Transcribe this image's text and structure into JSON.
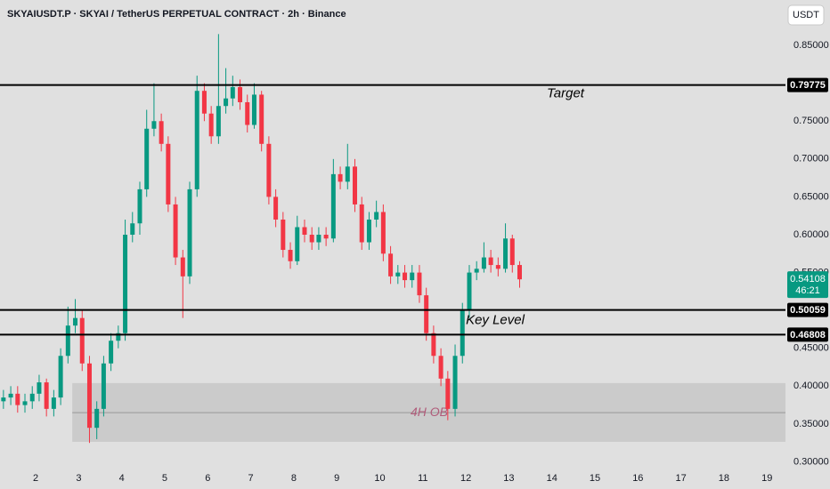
{
  "chart_data": {
    "type": "candlestick",
    "title": "SKYAIUSDT.P · SKYAI / TetherUS PERPETUAL CONTRACT · 2h · Binance",
    "currency": "USDT",
    "up_color": "#089981",
    "down_color": "#f23645",
    "x": [
      1.25,
      1.42,
      1.58,
      1.75,
      1.92,
      2.08,
      2.25,
      2.42,
      2.58,
      2.75,
      2.92,
      3.08,
      3.25,
      3.42,
      3.58,
      3.75,
      3.92,
      4.08,
      4.25,
      4.42,
      4.58,
      4.75,
      4.92,
      5.08,
      5.25,
      5.42,
      5.58,
      5.75,
      5.92,
      6.08,
      6.25,
      6.42,
      6.58,
      6.75,
      6.92,
      7.08,
      7.25,
      7.42,
      7.58,
      7.75,
      7.92,
      8.08,
      8.25,
      8.42,
      8.58,
      8.75,
      8.92,
      9.08,
      9.25,
      9.42,
      9.58,
      9.75,
      9.92,
      10.08,
      10.25,
      10.42,
      10.58,
      10.75,
      10.92,
      11.08,
      11.25,
      11.42,
      11.58,
      11.75,
      11.92,
      12.08,
      12.25,
      12.42,
      12.58,
      12.75,
      12.92,
      13.08,
      13.25
    ],
    "open": [
      0.38,
      0.385,
      0.39,
      0.375,
      0.38,
      0.39,
      0.405,
      0.37,
      0.385,
      0.44,
      0.48,
      0.49,
      0.43,
      0.345,
      0.37,
      0.43,
      0.46,
      0.47,
      0.6,
      0.615,
      0.66,
      0.74,
      0.75,
      0.72,
      0.64,
      0.57,
      0.545,
      0.66,
      0.79,
      0.76,
      0.73,
      0.77,
      0.78,
      0.795,
      0.775,
      0.745,
      0.785,
      0.72,
      0.65,
      0.62,
      0.58,
      0.565,
      0.61,
      0.6,
      0.59,
      0.6,
      0.595,
      0.68,
      0.67,
      0.69,
      0.64,
      0.59,
      0.62,
      0.63,
      0.575,
      0.545,
      0.55,
      0.54,
      0.55,
      0.52,
      0.47,
      0.44,
      0.41,
      0.37,
      0.44,
      0.5,
      0.55,
      0.555,
      0.57,
      0.56,
      0.555,
      0.595,
      0.56
    ],
    "high": [
      0.395,
      0.4,
      0.4,
      0.39,
      0.4,
      0.415,
      0.41,
      0.395,
      0.45,
      0.505,
      0.515,
      0.5,
      0.44,
      0.38,
      0.44,
      0.47,
      0.48,
      0.62,
      0.63,
      0.67,
      0.765,
      0.8,
      0.76,
      0.73,
      0.65,
      0.58,
      0.67,
      0.81,
      0.8,
      0.77,
      0.865,
      0.82,
      0.81,
      0.805,
      0.785,
      0.8,
      0.79,
      0.73,
      0.66,
      0.63,
      0.59,
      0.625,
      0.62,
      0.61,
      0.61,
      0.61,
      0.7,
      0.69,
      0.72,
      0.7,
      0.65,
      0.63,
      0.645,
      0.64,
      0.585,
      0.56,
      0.56,
      0.56,
      0.56,
      0.53,
      0.48,
      0.45,
      0.42,
      0.455,
      0.51,
      0.56,
      0.565,
      0.59,
      0.58,
      0.57,
      0.615,
      0.6,
      0.565
    ],
    "low": [
      0.37,
      0.375,
      0.365,
      0.365,
      0.37,
      0.38,
      0.36,
      0.36,
      0.375,
      0.43,
      0.47,
      0.42,
      0.325,
      0.33,
      0.36,
      0.42,
      0.45,
      0.46,
      0.59,
      0.6,
      0.65,
      0.73,
      0.71,
      0.63,
      0.56,
      0.49,
      0.535,
      0.65,
      0.75,
      0.72,
      0.72,
      0.76,
      0.77,
      0.765,
      0.735,
      0.74,
      0.71,
      0.64,
      0.61,
      0.57,
      0.555,
      0.56,
      0.59,
      0.58,
      0.58,
      0.585,
      0.59,
      0.66,
      0.66,
      0.63,
      0.58,
      0.58,
      0.61,
      0.565,
      0.535,
      0.535,
      0.53,
      0.53,
      0.51,
      0.46,
      0.43,
      0.4,
      0.355,
      0.36,
      0.43,
      0.49,
      0.54,
      0.55,
      0.55,
      0.545,
      0.55,
      0.55,
      0.53
    ],
    "close": [
      0.385,
      0.39,
      0.375,
      0.38,
      0.39,
      0.405,
      0.37,
      0.385,
      0.44,
      0.48,
      0.49,
      0.43,
      0.345,
      0.37,
      0.43,
      0.46,
      0.47,
      0.6,
      0.615,
      0.66,
      0.74,
      0.75,
      0.72,
      0.64,
      0.57,
      0.545,
      0.66,
      0.79,
      0.76,
      0.73,
      0.77,
      0.78,
      0.795,
      0.775,
      0.745,
      0.785,
      0.72,
      0.65,
      0.62,
      0.58,
      0.565,
      0.61,
      0.6,
      0.59,
      0.6,
      0.595,
      0.68,
      0.67,
      0.69,
      0.64,
      0.59,
      0.62,
      0.63,
      0.575,
      0.545,
      0.55,
      0.54,
      0.55,
      0.52,
      0.47,
      0.44,
      0.41,
      0.37,
      0.44,
      0.5,
      0.55,
      0.555,
      0.57,
      0.56,
      0.555,
      0.595,
      0.56,
      0.54108
    ],
    "countdown": "46:21",
    "xlim": [
      1.17,
      19.43
    ],
    "ylim": [
      0.29,
      0.91
    ],
    "xticks": [
      2,
      3,
      4,
      5,
      6,
      7,
      8,
      9,
      10,
      11,
      12,
      13,
      14,
      15,
      16,
      17,
      18,
      19
    ],
    "yticks": [
      {
        "value": 0.3,
        "label": "0.30000"
      },
      {
        "value": 0.35,
        "label": "0.35000"
      },
      {
        "value": 0.4,
        "label": "0.40000"
      },
      {
        "value": 0.45,
        "label": "0.45000"
      },
      {
        "value": 0.55,
        "label": "0.55000"
      },
      {
        "value": 0.6,
        "label": "0.60000"
      },
      {
        "value": 0.65,
        "label": "0.65000"
      },
      {
        "value": 0.7,
        "label": "0.70000"
      },
      {
        "value": 0.75,
        "label": "0.75000"
      },
      {
        "value": 0.85,
        "label": "0.85000"
      }
    ],
    "levels": [
      {
        "value": 0.79775,
        "note": "Target"
      },
      {
        "value": 0.50059,
        "note": "Key Level"
      },
      {
        "value": 0.46808
      }
    ],
    "zone": {
      "label": "4H OB",
      "top": 0.404,
      "bottom": 0.3265,
      "mid": 0.365,
      "start": 2.85
    }
  }
}
